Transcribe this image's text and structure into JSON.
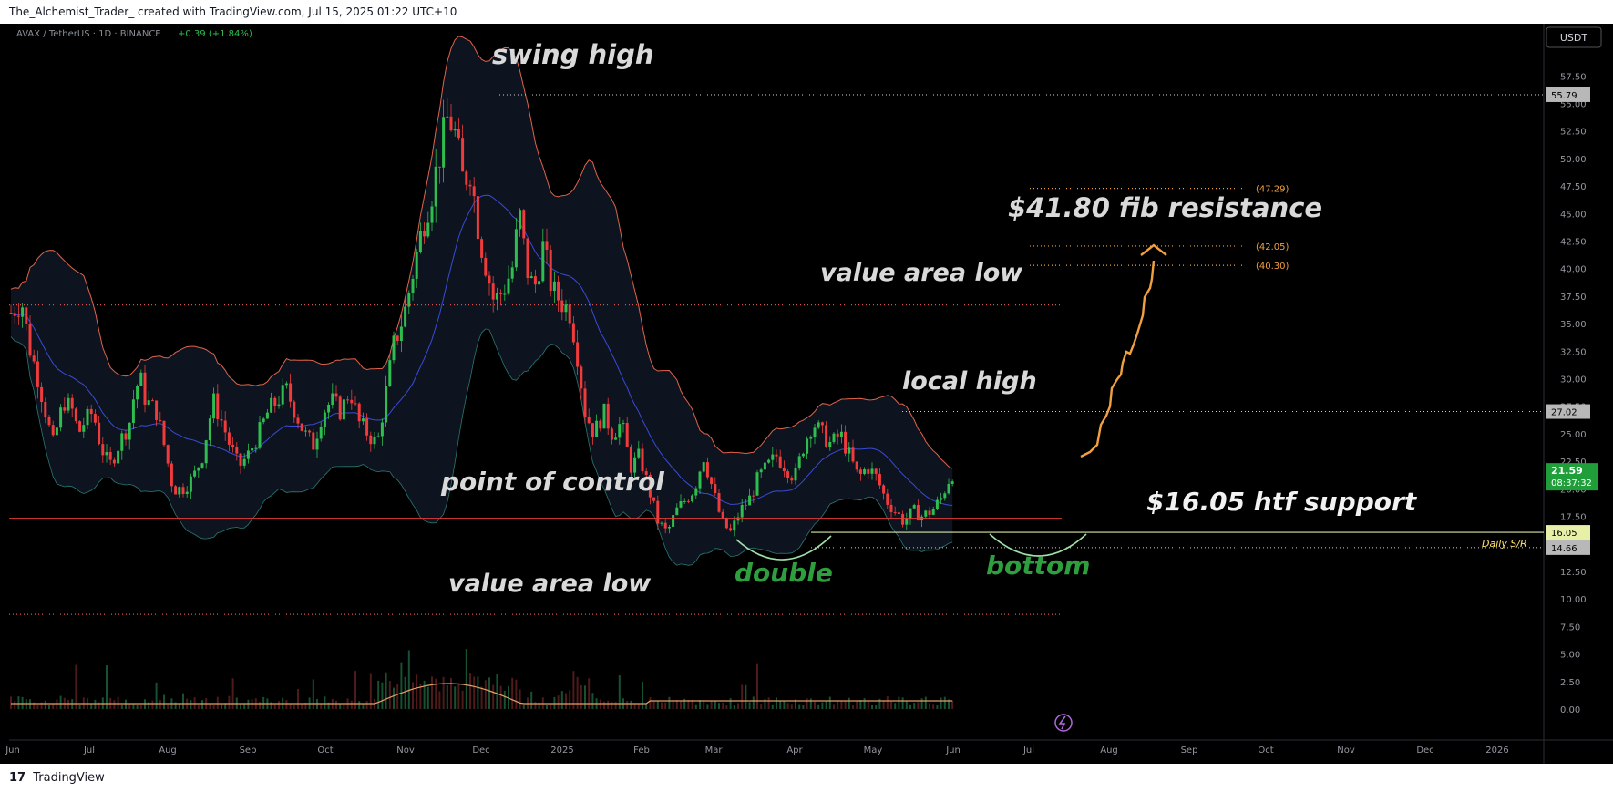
{
  "header": {
    "text": "The_Alchemist_Trader_ created with TradingView.com, Jul 15, 2025 01:22 UTC+10"
  },
  "footer": {
    "logo": "𝟭𝟳",
    "brand": "TradingView"
  },
  "symbol": {
    "pair": "AVAX / TetherUS · 1D · BINANCE",
    "change": "+0.39 (+1.84%)",
    "currency": "USDT"
  },
  "colors": {
    "bg": "#000000",
    "up": "#26a69a",
    "up_bright": "#2ebd4e",
    "down": "#ef3b3b",
    "band": "#e0634a",
    "mid": "#3a4bd8",
    "annot_white": "#d9d9d9",
    "annot_green": "#2e9e3e",
    "fib": "#f0a040",
    "support_line": "#d9e6a8",
    "poc": "#e53935",
    "val": "#d9534f"
  },
  "chart_data": {
    "type": "candlestick",
    "title": "AVAX / TetherUS · 1D · BINANCE",
    "x_tick_labels": [
      "Jun",
      "Jul",
      "Aug",
      "Sep",
      "Oct",
      "Nov",
      "Dec",
      "2025",
      "Feb",
      "Mar",
      "Apr",
      "May",
      "Jun",
      "Jul",
      "Aug",
      "Sep",
      "Oct",
      "Nov",
      "Dec",
      "2026"
    ],
    "y_tick_labels": [
      "57.50",
      "55.00",
      "52.50",
      "50.00",
      "47.50",
      "45.00",
      "42.50",
      "40.00",
      "37.50",
      "35.00",
      "32.50",
      "30.00",
      "27.50",
      "25.00",
      "22.50",
      "20.00",
      "17.50",
      "15.00",
      "12.50",
      "10.00",
      "7.50",
      "5.00",
      "2.50",
      "0.00"
    ],
    "ylim": [
      -1.5,
      60
    ],
    "price_path": [
      [
        0,
        36
      ],
      [
        12,
        37
      ],
      [
        20,
        33
      ],
      [
        30,
        30
      ],
      [
        38,
        27
      ],
      [
        46,
        24
      ],
      [
        58,
        28
      ],
      [
        68,
        27
      ],
      [
        74,
        25
      ],
      [
        80,
        26
      ],
      [
        90,
        27
      ],
      [
        98,
        24
      ],
      [
        108,
        22
      ],
      [
        118,
        24
      ],
      [
        130,
        26
      ],
      [
        136,
        29
      ],
      [
        142,
        30
      ],
      [
        148,
        28
      ],
      [
        160,
        27
      ],
      [
        168,
        24
      ],
      [
        178,
        20
      ],
      [
        188,
        20
      ],
      [
        200,
        21
      ],
      [
        210,
        23
      ],
      [
        222,
        28
      ],
      [
        232,
        26
      ],
      [
        240,
        24
      ],
      [
        250,
        22
      ],
      [
        260,
        23
      ],
      [
        272,
        25
      ],
      [
        282,
        27
      ],
      [
        292,
        28
      ],
      [
        302,
        29
      ],
      [
        312,
        27
      ],
      [
        322,
        25
      ],
      [
        332,
        24
      ],
      [
        342,
        27
      ],
      [
        352,
        28
      ],
      [
        362,
        27
      ],
      [
        372,
        29
      ],
      [
        382,
        26
      ],
      [
        392,
        25
      ],
      [
        402,
        24
      ],
      [
        412,
        29
      ],
      [
        420,
        33
      ],
      [
        432,
        36
      ],
      [
        442,
        40
      ],
      [
        452,
        44
      ],
      [
        462,
        47
      ],
      [
        472,
        51
      ],
      [
        480,
        54
      ],
      [
        488,
        52
      ],
      [
        496,
        48
      ],
      [
        504,
        49
      ],
      [
        514,
        43
      ],
      [
        522,
        40
      ],
      [
        530,
        37
      ],
      [
        540,
        38
      ],
      [
        550,
        40
      ],
      [
        558,
        45
      ],
      [
        566,
        40
      ],
      [
        574,
        38
      ],
      [
        584,
        42
      ],
      [
        594,
        38
      ],
      [
        604,
        37
      ],
      [
        614,
        36
      ],
      [
        622,
        32
      ],
      [
        630,
        27
      ],
      [
        640,
        25
      ],
      [
        650,
        27
      ],
      [
        660,
        25
      ],
      [
        670,
        26
      ],
      [
        680,
        22
      ],
      [
        690,
        23
      ],
      [
        700,
        20
      ],
      [
        710,
        17
      ],
      [
        720,
        16
      ],
      [
        730,
        18
      ],
      [
        740,
        19
      ],
      [
        750,
        20
      ],
      [
        760,
        23
      ],
      [
        770,
        20
      ],
      [
        780,
        17
      ],
      [
        790,
        16
      ],
      [
        800,
        18
      ],
      [
        810,
        19
      ],
      [
        820,
        21
      ],
      [
        830,
        22
      ],
      [
        840,
        23
      ],
      [
        850,
        22
      ],
      [
        860,
        21
      ],
      [
        870,
        24
      ],
      [
        880,
        26
      ],
      [
        890,
        25
      ],
      [
        900,
        24
      ],
      [
        910,
        25
      ],
      [
        920,
        23
      ],
      [
        930,
        21
      ],
      [
        940,
        22
      ],
      [
        950,
        21
      ],
      [
        960,
        19
      ],
      [
        970,
        18
      ],
      [
        980,
        17
      ],
      [
        990,
        18
      ],
      [
        1000,
        17.5
      ],
      [
        1010,
        18
      ],
      [
        1020,
        19
      ],
      [
        1030,
        21
      ],
      [
        1035,
        21.6
      ]
    ],
    "current_price": "21.59",
    "countdown": "08:37:32",
    "labels": {
      "swing_high_price": "55.79",
      "local_high_price": "27.02",
      "support_price": "16.05",
      "daily_sr_price": "14.66",
      "daily_sr_tag": "Daily S/R",
      "fib_472": "(47.29)",
      "fib_4205": "(42.05)",
      "fib_4030": "(40.30)"
    },
    "annotations": {
      "swing_high": "swing high",
      "fib_resistance": "$41.80 fib resistance",
      "value_area_low_top": "value area low",
      "local_high": "local high",
      "point_of_control": "point of control",
      "htf_support": "$16.05 htf support",
      "double": "double",
      "bottom": "bottom",
      "value_area_low_bottom": "value area low"
    },
    "levels": {
      "swing_high": 55.79,
      "fib_4729": 47.29,
      "fib_4205": 42.05,
      "fib_4030": 40.3,
      "value_area_low_top": 36.7,
      "local_high": 27.02,
      "point_of_control": 17.3,
      "htf_support": 16.05,
      "daily_sr": 14.66,
      "value_area_low_bottom": 8.6
    }
  }
}
